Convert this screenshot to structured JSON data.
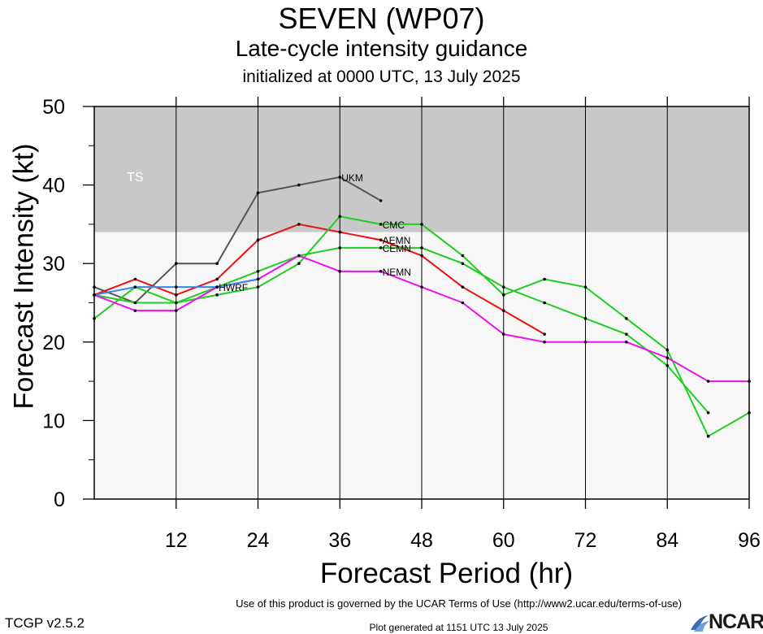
{
  "header": {
    "title": "SEVEN (WP07)",
    "subtitle": "Late-cycle intensity guidance",
    "initialized": "initialized at 0000 UTC, 13 July 2025"
  },
  "footer": {
    "terms": "Use of this product is governed by the UCAR Terms of Use (http://www2.ucar.edu/terms-of-use)",
    "version": "TCGP v2.5.2",
    "generated": "Plot generated at 1151 UTC   13 July 2025",
    "logo_text": "NCAR"
  },
  "chart_data": {
    "type": "line",
    "xlabel": "Forecast Period (hr)",
    "ylabel": "Forecast Intensity (kt)",
    "xlim": [
      0,
      96
    ],
    "ylim": [
      0,
      50
    ],
    "xticks": [
      12,
      24,
      36,
      48,
      60,
      72,
      84,
      96
    ],
    "yticks": [
      0,
      10,
      20,
      30,
      40,
      50
    ],
    "bands": [
      {
        "label": "TS",
        "from": 34,
        "to": 50,
        "color": "#c8c8c8"
      },
      {
        "label": "",
        "from": 0,
        "to": 34,
        "color": "#f7f7f7"
      }
    ],
    "series": [
      {
        "name": "UKM",
        "color": "#555555",
        "x": [
          0,
          6,
          12,
          18,
          24,
          30,
          36,
          42
        ],
        "y": [
          27,
          25,
          30,
          30,
          39,
          40,
          41,
          38
        ]
      },
      {
        "name": "AEMN",
        "color": "#ee1111",
        "x": [
          0,
          6,
          12,
          18,
          24,
          30,
          36,
          42,
          48,
          54,
          60,
          66
        ],
        "y": [
          26,
          28,
          26,
          28,
          33,
          35,
          34,
          33,
          31,
          27,
          24,
          21
        ]
      },
      {
        "name": "CMC",
        "color": "#22cc22",
        "x": [
          0,
          6,
          12,
          18,
          24,
          30,
          36,
          42,
          48,
          54,
          60,
          66,
          72,
          78,
          84,
          90,
          96
        ],
        "y": [
          23,
          27,
          25,
          26,
          27,
          30,
          36,
          35,
          35,
          31,
          26,
          28,
          27,
          23,
          19,
          8,
          11
        ]
      },
      {
        "name": "CEMN",
        "color": "#22cc22",
        "x": [
          0,
          6,
          12,
          18,
          24,
          30,
          36,
          42,
          48,
          54,
          60,
          66,
          72,
          78,
          84,
          90
        ],
        "y": [
          26,
          25,
          25,
          27,
          29,
          31,
          32,
          32,
          32,
          30,
          27,
          25,
          23,
          21,
          17,
          11
        ]
      },
      {
        "name": "NEMN",
        "color": "#ee11ee",
        "x": [
          0,
          6,
          12,
          18,
          24,
          30,
          36,
          42,
          48,
          54,
          60,
          66,
          72,
          78,
          84,
          90,
          96
        ],
        "y": [
          26,
          24,
          24,
          27,
          28,
          31,
          29,
          29,
          27,
          25,
          21,
          20,
          20,
          20,
          18,
          15,
          15
        ]
      },
      {
        "name": "HWRF",
        "color": "#3388ee",
        "x": [
          0,
          6,
          12,
          18,
          24
        ],
        "y": [
          26,
          27,
          27,
          27,
          28
        ]
      }
    ]
  }
}
